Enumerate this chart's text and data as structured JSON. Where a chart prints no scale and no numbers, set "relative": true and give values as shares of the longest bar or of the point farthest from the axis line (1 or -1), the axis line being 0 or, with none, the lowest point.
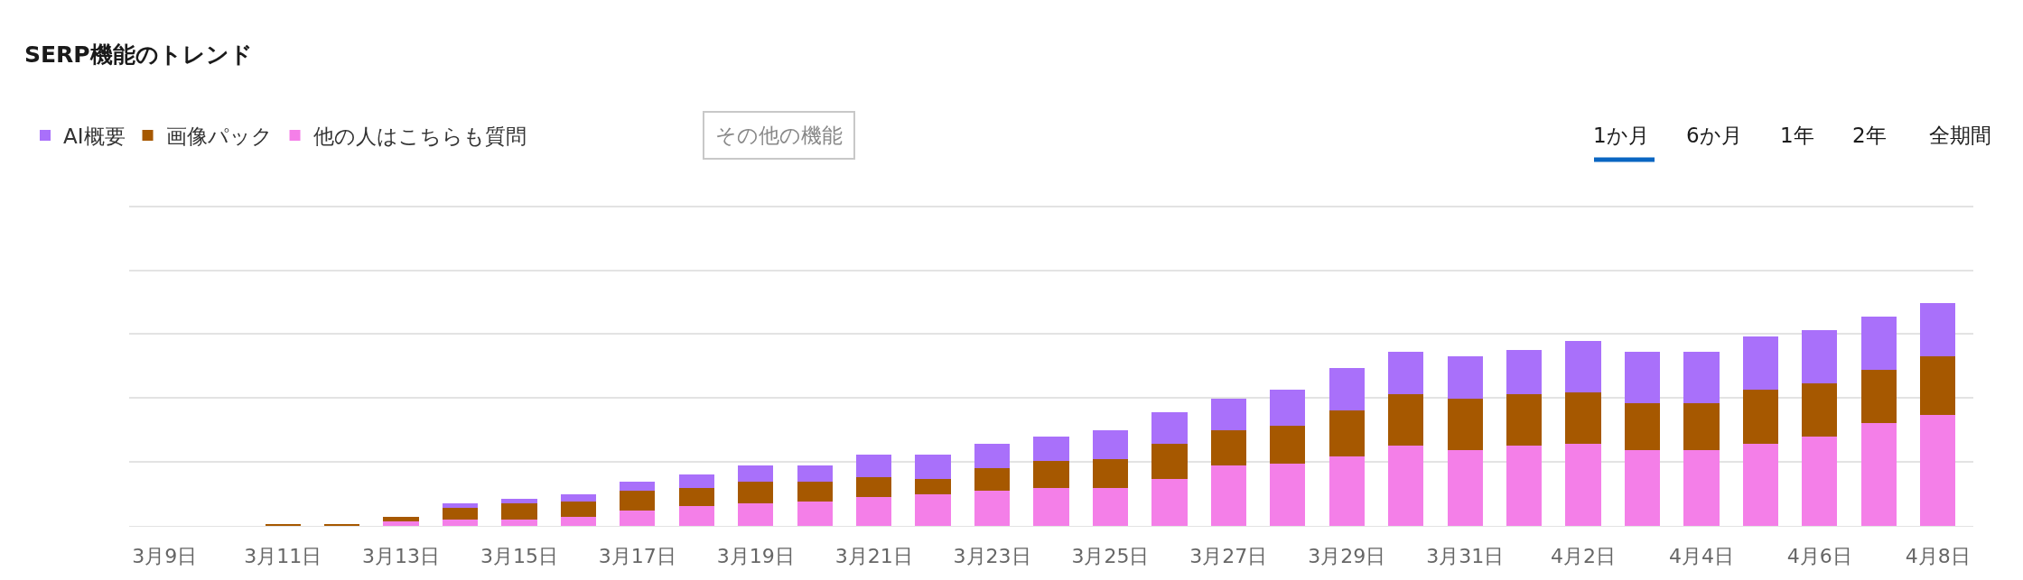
{
  "chart_data": {
    "type": "bar",
    "title": "SERP機能のトレンド",
    "relative": true,
    "stacked": true,
    "grid": "y",
    "legend": "top left",
    "tick_labels": "x",
    "categories": [
      "3月9日",
      null,
      "3月11日",
      null,
      "3月13日",
      null,
      "3月15日",
      null,
      "3月17日",
      null,
      "3月19日",
      null,
      "3月21日",
      null,
      "3月23日",
      null,
      "3月25日",
      null,
      "3月27日",
      null,
      "3月29日",
      null,
      "3月31日",
      null,
      "4月2日",
      null,
      "4月4日",
      null,
      "4月6日",
      null,
      "4月8日"
    ],
    "series": [
      {
        "name": "他の人はこちらも質問",
        "color": "#f47fe8",
        "values": [
          0,
          0,
          0,
          0,
          0.02,
          0.03,
          0.03,
          0.04,
          0.07,
          0.09,
          0.1,
          0.11,
          0.13,
          0.14,
          0.16,
          0.17,
          0.17,
          0.21,
          0.27,
          0.28,
          0.31,
          0.36,
          0.34,
          0.36,
          0.37,
          0.34,
          0.34,
          0.37,
          0.4,
          0.46,
          0.5
        ]
      },
      {
        "name": "画像パック",
        "color": "#a65800",
        "values": [
          0,
          0,
          0.01,
          0.01,
          0.02,
          0.05,
          0.07,
          0.07,
          0.09,
          0.08,
          0.1,
          0.09,
          0.09,
          0.07,
          0.1,
          0.12,
          0.13,
          0.16,
          0.16,
          0.17,
          0.21,
          0.23,
          0.23,
          0.23,
          0.23,
          0.21,
          0.21,
          0.24,
          0.24,
          0.24,
          0.26
        ]
      },
      {
        "name": "AI概要",
        "color": "#a970fa",
        "values": [
          0,
          0,
          0,
          0,
          0,
          0.02,
          0.02,
          0.03,
          0.04,
          0.06,
          0.07,
          0.07,
          0.1,
          0.11,
          0.11,
          0.11,
          0.13,
          0.14,
          0.14,
          0.16,
          0.19,
          0.19,
          0.19,
          0.2,
          0.23,
          0.23,
          0.23,
          0.24,
          0.24,
          0.24,
          0.24
        ]
      }
    ],
    "annotations": [
      "その他の機能",
      "1か月",
      "6か月",
      "1年",
      "2年",
      "全期間"
    ]
  }
}
